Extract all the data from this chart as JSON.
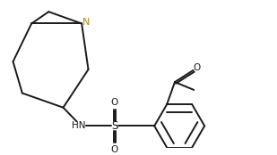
{
  "bg_color": "#ffffff",
  "line_color": "#1a1a1a",
  "N_color": "#b8860b",
  "line_width": 1.4,
  "figsize": [
    3.09,
    1.74
  ],
  "dpi": 100,
  "xlim": [
    0,
    10
  ],
  "ylim": [
    0,
    5.6
  ]
}
